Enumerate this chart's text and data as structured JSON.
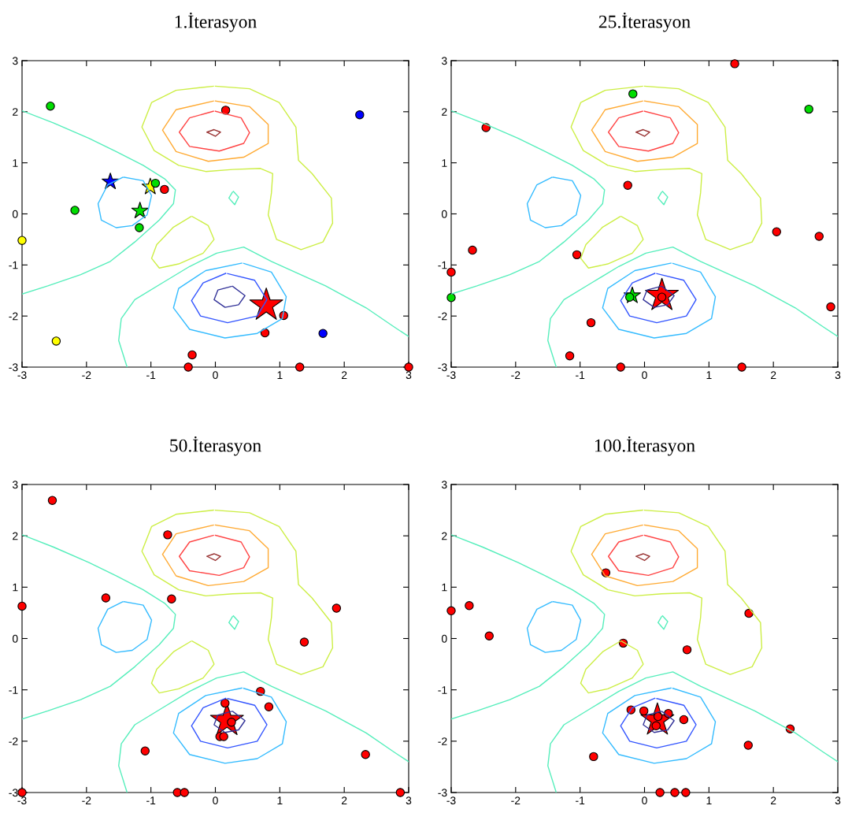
{
  "chart_data": [
    {
      "type": "scatter",
      "title": "1.İterasyon",
      "xlim": [
        -3,
        3
      ],
      "ylim": [
        -3,
        3
      ],
      "xticks": [
        -3,
        -2,
        -1,
        0,
        1,
        2,
        3
      ],
      "yticks": [
        -3,
        -2,
        -1,
        0,
        1,
        2,
        3
      ],
      "series": [
        {
          "type": "line",
          "color": "#55eebb",
          "x": [
            -3,
            -2.51,
            -1.96,
            -1.54,
            -1.12,
            -0.78,
            -0.62,
            -0.65,
            -0.87,
            -1.25,
            -1.63,
            -2.09,
            -2.6,
            -3
          ],
          "values": [
            2.02,
            1.78,
            1.48,
            1.22,
            0.95,
            0.68,
            0.47,
            0.2,
            -0.12,
            -0.55,
            -0.93,
            -1.19,
            -1.41,
            -1.57
          ]
        },
        {
          "type": "line",
          "color": "#55eebb",
          "x": [
            -1.37,
            -1.5,
            -1.46,
            -1.25,
            -0.82,
            -0.4,
            0.02,
            0.44,
            0.87,
            1.71,
            2.34,
            2.77,
            3
          ],
          "values": [
            -3,
            -2.48,
            -2.05,
            -1.68,
            -1.35,
            -1.03,
            -0.77,
            -0.65,
            -0.93,
            -1.41,
            -1.84,
            -2.21,
            -2.4
          ]
        },
        {
          "type": "line",
          "color": "#55eebb",
          "x": [
            0.28,
            0.36,
            0.3,
            0.21,
            0.265
          ],
          "values": [
            0.44,
            0.33,
            0.18,
            0.31,
            0.425
          ]
        },
        {
          "type": "line",
          "color": "#33bbff",
          "x": [
            -1.42,
            -1.12,
            -0.99,
            -1.06,
            -1.29,
            -1.54,
            -1.77,
            -1.82,
            -1.67,
            -1.44
          ],
          "values": [
            0.72,
            0.65,
            0.36,
            -0.02,
            -0.23,
            -0.27,
            -0.12,
            0.2,
            0.57,
            0.715
          ]
        },
        {
          "type": "line",
          "color": "#ccee44",
          "x": [
            -0.36,
            -0.11,
            -0.02,
            -0.19,
            -0.57,
            -0.87,
            -0.99,
            -0.91,
            -0.65,
            -0.38
          ],
          "values": [
            -0.05,
            -0.23,
            -0.5,
            -0.77,
            -0.98,
            -1.06,
            -0.87,
            -0.6,
            -0.26,
            -0.055
          ]
        },
        {
          "type": "line",
          "color": "#ccee44",
          "x": [
            0,
            0.53,
            0.99,
            1.25,
            1.29,
            1.5,
            1.8,
            1.82,
            1.67,
            1.33,
            0.95,
            0.82,
            0.87,
            0.89,
            0.7,
            0.27,
            -0.15,
            -0.57,
            -0.95,
            -1.14,
            -0.99,
            -0.61,
            -0.03
          ],
          "values": [
            2.5,
            2.45,
            2.18,
            1.7,
            1.05,
            0.79,
            0.31,
            -0.18,
            -0.55,
            -0.7,
            -0.5,
            -0.02,
            0.41,
            0.79,
            0.89,
            0.87,
            0.83,
            0.95,
            1.24,
            1.7,
            2.18,
            2.42,
            2.5
          ]
        },
        {
          "type": "line",
          "color": "#ffaa33",
          "x": [
            0,
            0.53,
            0.82,
            0.82,
            0.44,
            -0.11,
            -0.61,
            -0.82,
            -0.61,
            -0.03
          ],
          "values": [
            2.21,
            2.1,
            1.75,
            1.38,
            1.11,
            1.03,
            1.22,
            1.64,
            2.04,
            2.21
          ]
        },
        {
          "type": "line",
          "color": "#ff4444",
          "x": [
            0,
            0.4,
            0.53,
            0.44,
            0.06,
            -0.4,
            -0.56,
            -0.4,
            -0.03
          ],
          "values": [
            2.01,
            1.88,
            1.59,
            1.38,
            1.23,
            1.32,
            1.6,
            1.88,
            2.01
          ]
        },
        {
          "type": "line",
          "color": "#993333",
          "x": [
            -0.13,
            -0.02,
            0.08,
            0,
            -0.12
          ],
          "values": [
            1.6,
            1.65,
            1.6,
            1.52,
            1.595
          ]
        },
        {
          "type": "line",
          "color": "#33bbff",
          "x": [
            0.44,
            0.87,
            1.1,
            1.04,
            0.65,
            0.15,
            -0.4,
            -0.65,
            -0.57,
            -0.15,
            0.41
          ],
          "values": [
            -0.97,
            -1.14,
            -1.62,
            -2.05,
            -2.34,
            -2.43,
            -2.26,
            -1.84,
            -1.46,
            -1.11,
            -0.965
          ]
        },
        {
          "type": "line",
          "color": "#3355ff",
          "x": [
            0.19,
            0.61,
            0.8,
            0.65,
            0.19,
            -0.23,
            -0.37,
            -0.19,
            0.16
          ],
          "values": [
            -1.17,
            -1.3,
            -1.68,
            -2.0,
            -2.13,
            -2.0,
            -1.7,
            -1.35,
            -1.165
          ]
        },
        {
          "type": "line",
          "color": "#333399",
          "x": [
            0.27,
            0.46,
            0.36,
            0.15,
            -0.02,
            0.04,
            0.25
          ],
          "values": [
            -1.42,
            -1.6,
            -1.78,
            -1.83,
            -1.68,
            -1.49,
            -1.42
          ]
        },
        {
          "type": "scatter",
          "marker": "circle",
          "color": "#00dd00",
          "x": [
            -2.56,
            -2.18,
            -1.18,
            -0.93
          ],
          "values": [
            2.11,
            0.07,
            -0.27,
            0.6
          ]
        },
        {
          "type": "scatter",
          "marker": "circle",
          "color": "#ffff00",
          "x": [
            -3,
            -2.47
          ],
          "values": [
            -0.52,
            -2.49
          ]
        },
        {
          "type": "scatter",
          "marker": "circle",
          "color": "#0000ff",
          "x": [
            2.24,
            1.67
          ],
          "values": [
            1.94,
            -2.34
          ]
        },
        {
          "type": "scatter",
          "marker": "circle",
          "color": "#ff0000",
          "x": [
            0.16,
            -0.79,
            1.06,
            0.77,
            -0.36,
            -0.42,
            1.31,
            3
          ],
          "values": [
            2.03,
            0.48,
            -1.99,
            -2.33,
            -2.76,
            -3,
            -3,
            -3
          ]
        },
        {
          "type": "scatter",
          "marker": "star",
          "colors": [
            "#0000ff",
            "#ffff00",
            "#00dd00",
            "#ff0000"
          ],
          "x": [
            -1.63,
            -1.01,
            -1.17,
            0.79
          ],
          "values": [
            0.63,
            0.53,
            0.06,
            -1.79
          ],
          "sizes": [
            0.25,
            0.25,
            0.25,
            1
          ]
        }
      ]
    },
    {
      "type": "scatter",
      "title": "25.İterasyon",
      "xlim": [
        -3,
        3
      ],
      "ylim": [
        -3,
        3
      ],
      "xticks": [
        -3,
        -2,
        -1,
        0,
        1,
        2,
        3
      ],
      "yticks": [
        -3,
        -2,
        -1,
        0,
        1,
        2,
        3
      ],
      "series": [
        {
          "type": "line",
          "color": "#55eebb",
          "x": [
            -3,
            -2.51,
            -1.96,
            -1.54,
            -1.12,
            -0.78,
            -0.62,
            -0.65,
            -0.87,
            -1.25,
            -1.63,
            -2.09,
            -2.6,
            -3
          ],
          "values": [
            2.02,
            1.78,
            1.48,
            1.22,
            0.95,
            0.68,
            0.47,
            0.2,
            -0.12,
            -0.55,
            -0.93,
            -1.19,
            -1.41,
            -1.57
          ]
        },
        {
          "type": "line",
          "color": "#55eebb",
          "x": [
            -1.37,
            -1.5,
            -1.46,
            -1.25,
            -0.82,
            -0.4,
            0.02,
            0.44,
            0.87,
            1.71,
            2.34,
            2.77,
            3
          ],
          "values": [
            -3,
            -2.48,
            -2.05,
            -1.68,
            -1.35,
            -1.03,
            -0.77,
            -0.65,
            -0.93,
            -1.41,
            -1.84,
            -2.21,
            -2.4
          ]
        },
        {
          "type": "line",
          "color": "#55eebb",
          "x": [
            0.28,
            0.36,
            0.3,
            0.21,
            0.265
          ],
          "values": [
            0.44,
            0.33,
            0.18,
            0.31,
            0.425
          ]
        },
        {
          "type": "line",
          "color": "#33bbff",
          "x": [
            -1.42,
            -1.12,
            -0.99,
            -1.06,
            -1.29,
            -1.54,
            -1.77,
            -1.82,
            -1.67,
            -1.44
          ],
          "values": [
            0.72,
            0.65,
            0.36,
            -0.02,
            -0.23,
            -0.27,
            -0.12,
            0.2,
            0.57,
            0.715
          ]
        },
        {
          "type": "line",
          "color": "#ccee44",
          "x": [
            -0.36,
            -0.11,
            -0.02,
            -0.19,
            -0.57,
            -0.87,
            -0.99,
            -0.91,
            -0.65,
            -0.38
          ],
          "values": [
            -0.05,
            -0.23,
            -0.5,
            -0.77,
            -0.98,
            -1.06,
            -0.87,
            -0.6,
            -0.26,
            -0.055
          ]
        },
        {
          "type": "line",
          "color": "#ccee44",
          "x": [
            0,
            0.53,
            0.99,
            1.25,
            1.29,
            1.5,
            1.8,
            1.82,
            1.67,
            1.33,
            0.95,
            0.82,
            0.87,
            0.89,
            0.7,
            0.27,
            -0.15,
            -0.57,
            -0.95,
            -1.14,
            -0.99,
            -0.61,
            -0.03
          ],
          "values": [
            2.5,
            2.45,
            2.18,
            1.7,
            1.05,
            0.79,
            0.31,
            -0.18,
            -0.55,
            -0.7,
            -0.5,
            -0.02,
            0.41,
            0.79,
            0.89,
            0.87,
            0.83,
            0.95,
            1.24,
            1.7,
            2.18,
            2.42,
            2.5
          ]
        },
        {
          "type": "line",
          "color": "#ffaa33",
          "x": [
            0,
            0.53,
            0.82,
            0.82,
            0.44,
            -0.11,
            -0.61,
            -0.82,
            -0.61,
            -0.03
          ],
          "values": [
            2.21,
            2.1,
            1.75,
            1.38,
            1.11,
            1.03,
            1.22,
            1.64,
            2.04,
            2.21
          ]
        },
        {
          "type": "line",
          "color": "#ff4444",
          "x": [
            0,
            0.4,
            0.53,
            0.44,
            0.06,
            -0.4,
            -0.56,
            -0.4,
            -0.03
          ],
          "values": [
            2.01,
            1.88,
            1.59,
            1.38,
            1.23,
            1.32,
            1.6,
            1.88,
            2.01
          ]
        },
        {
          "type": "line",
          "color": "#993333",
          "x": [
            -0.13,
            -0.02,
            0.08,
            0,
            -0.12
          ],
          "values": [
            1.6,
            1.65,
            1.6,
            1.52,
            1.595
          ]
        },
        {
          "type": "line",
          "color": "#33bbff",
          "x": [
            0.44,
            0.87,
            1.1,
            1.04,
            0.65,
            0.15,
            -0.4,
            -0.65,
            -0.57,
            -0.15,
            0.41
          ],
          "values": [
            -0.97,
            -1.14,
            -1.62,
            -2.05,
            -2.34,
            -2.43,
            -2.26,
            -1.84,
            -1.46,
            -1.11,
            -0.965
          ]
        },
        {
          "type": "line",
          "color": "#3355ff",
          "x": [
            0.19,
            0.61,
            0.8,
            0.65,
            0.19,
            -0.23,
            -0.37,
            -0.19,
            0.16
          ],
          "values": [
            -1.17,
            -1.3,
            -1.68,
            -2.0,
            -2.13,
            -2.0,
            -1.7,
            -1.35,
            -1.165
          ]
        },
        {
          "type": "line",
          "color": "#333399",
          "x": [
            0.27,
            0.46,
            0.36,
            0.15,
            -0.02,
            0.04,
            0.25
          ],
          "values": [
            -1.42,
            -1.6,
            -1.78,
            -1.83,
            -1.68,
            -1.49,
            -1.42
          ]
        },
        {
          "type": "scatter",
          "marker": "circle",
          "color": "#00dd00",
          "x": [
            -0.18,
            2.55,
            -3,
            -0.23
          ],
          "values": [
            2.35,
            2.05,
            -1.64,
            -1.63
          ]
        },
        {
          "type": "scatter",
          "marker": "star",
          "colors": [
            "#00dd00"
          ],
          "x": [
            -0.19
          ],
          "values": [
            -1.6
          ],
          "sizes": [
            0.25
          ]
        },
        {
          "type": "scatter",
          "marker": "star",
          "colors": [
            "#ff0000"
          ],
          "x": [
            0.27
          ],
          "values": [
            -1.6
          ],
          "sizes": [
            1
          ]
        },
        {
          "type": "scatter",
          "marker": "circle",
          "color": "#ff0000",
          "x": [
            1.4,
            -2.46,
            -0.26,
            2.05,
            2.71,
            -2.67,
            -1.05,
            -3,
            2.89,
            -0.83,
            -1.16,
            -0.37,
            1.51,
            0.27
          ],
          "values": [
            2.94,
            1.69,
            0.56,
            -0.35,
            -0.44,
            -0.71,
            -0.8,
            -1.14,
            -1.82,
            -2.13,
            -2.78,
            -3,
            -3,
            -1.63
          ]
        }
      ]
    },
    {
      "type": "scatter",
      "title": "50.İterasyon",
      "xlim": [
        -3,
        3
      ],
      "ylim": [
        -3,
        3
      ],
      "xticks": [
        -3,
        -2,
        -1,
        0,
        1,
        2,
        3
      ],
      "yticks": [
        -3,
        -2,
        -1,
        0,
        1,
        2,
        3
      ],
      "series": [
        {
          "type": "line",
          "color": "#55eebb",
          "x": [
            -3,
            -2.51,
            -1.96,
            -1.54,
            -1.12,
            -0.78,
            -0.62,
            -0.65,
            -0.87,
            -1.25,
            -1.63,
            -2.09,
            -2.6,
            -3
          ],
          "values": [
            2.02,
            1.78,
            1.48,
            1.22,
            0.95,
            0.68,
            0.47,
            0.2,
            -0.12,
            -0.55,
            -0.93,
            -1.19,
            -1.41,
            -1.57
          ]
        },
        {
          "type": "line",
          "color": "#55eebb",
          "x": [
            -1.37,
            -1.5,
            -1.46,
            -1.25,
            -0.82,
            -0.4,
            0.02,
            0.44,
            0.87,
            1.71,
            2.34,
            2.77,
            3
          ],
          "values": [
            -3,
            -2.48,
            -2.05,
            -1.68,
            -1.35,
            -1.03,
            -0.77,
            -0.65,
            -0.93,
            -1.41,
            -1.84,
            -2.21,
            -2.4
          ]
        },
        {
          "type": "line",
          "color": "#55eebb",
          "x": [
            0.28,
            0.36,
            0.3,
            0.21,
            0.265
          ],
          "values": [
            0.44,
            0.33,
            0.18,
            0.31,
            0.425
          ]
        },
        {
          "type": "line",
          "color": "#33bbff",
          "x": [
            -1.42,
            -1.12,
            -0.99,
            -1.06,
            -1.29,
            -1.54,
            -1.77,
            -1.82,
            -1.67,
            -1.44
          ],
          "values": [
            0.72,
            0.65,
            0.36,
            -0.02,
            -0.23,
            -0.27,
            -0.12,
            0.2,
            0.57,
            0.715
          ]
        },
        {
          "type": "line",
          "color": "#ccee44",
          "x": [
            -0.36,
            -0.11,
            -0.02,
            -0.19,
            -0.57,
            -0.87,
            -0.99,
            -0.91,
            -0.65,
            -0.38
          ],
          "values": [
            -0.05,
            -0.23,
            -0.5,
            -0.77,
            -0.98,
            -1.06,
            -0.87,
            -0.6,
            -0.26,
            -0.055
          ]
        },
        {
          "type": "line",
          "color": "#ccee44",
          "x": [
            0,
            0.53,
            0.99,
            1.25,
            1.29,
            1.5,
            1.8,
            1.82,
            1.67,
            1.33,
            0.95,
            0.82,
            0.87,
            0.89,
            0.7,
            0.27,
            -0.15,
            -0.57,
            -0.95,
            -1.14,
            -0.99,
            -0.61,
            -0.03
          ],
          "values": [
            2.5,
            2.45,
            2.18,
            1.7,
            1.05,
            0.79,
            0.31,
            -0.18,
            -0.55,
            -0.7,
            -0.5,
            -0.02,
            0.41,
            0.79,
            0.89,
            0.87,
            0.83,
            0.95,
            1.24,
            1.7,
            2.18,
            2.42,
            2.5
          ]
        },
        {
          "type": "line",
          "color": "#ffaa33",
          "x": [
            0,
            0.53,
            0.82,
            0.82,
            0.44,
            -0.11,
            -0.61,
            -0.82,
            -0.61,
            -0.03
          ],
          "values": [
            2.21,
            2.1,
            1.75,
            1.38,
            1.11,
            1.03,
            1.22,
            1.64,
            2.04,
            2.21
          ]
        },
        {
          "type": "line",
          "color": "#ff4444",
          "x": [
            0,
            0.4,
            0.53,
            0.44,
            0.06,
            -0.4,
            -0.56,
            -0.4,
            -0.03
          ],
          "values": [
            2.01,
            1.88,
            1.59,
            1.38,
            1.23,
            1.32,
            1.6,
            1.88,
            2.01
          ]
        },
        {
          "type": "line",
          "color": "#993333",
          "x": [
            -0.13,
            -0.02,
            0.08,
            0,
            -0.12
          ],
          "values": [
            1.6,
            1.65,
            1.6,
            1.52,
            1.595
          ]
        },
        {
          "type": "line",
          "color": "#33bbff",
          "x": [
            0.44,
            0.87,
            1.1,
            1.04,
            0.65,
            0.15,
            -0.4,
            -0.65,
            -0.57,
            -0.15,
            0.41
          ],
          "values": [
            -0.97,
            -1.14,
            -1.62,
            -2.05,
            -2.34,
            -2.43,
            -2.26,
            -1.84,
            -1.46,
            -1.11,
            -0.965
          ]
        },
        {
          "type": "line",
          "color": "#3355ff",
          "x": [
            0.19,
            0.61,
            0.8,
            0.65,
            0.19,
            -0.23,
            -0.37,
            -0.19,
            0.16
          ],
          "values": [
            -1.17,
            -1.3,
            -1.68,
            -2.0,
            -2.13,
            -2.0,
            -1.7,
            -1.35,
            -1.165
          ]
        },
        {
          "type": "line",
          "color": "#333399",
          "x": [
            0.27,
            0.46,
            0.36,
            0.15,
            -0.02,
            0.04,
            0.25
          ],
          "values": [
            -1.42,
            -1.6,
            -1.78,
            -1.83,
            -1.68,
            -1.49,
            -1.42
          ]
        },
        {
          "type": "scatter",
          "marker": "star",
          "colors": [
            "#ff0000"
          ],
          "x": [
            0.18
          ],
          "values": [
            -1.6
          ],
          "sizes": [
            1
          ]
        },
        {
          "type": "scatter",
          "marker": "circle",
          "color": "#ff0000",
          "x": [
            -2.53,
            -0.74,
            -1.7,
            -0.68,
            -3,
            1.88,
            1.38,
            0.7,
            0.83,
            0.15,
            0.25,
            0.07,
            0.13,
            -1.09,
            2.33,
            -3,
            -0.59,
            -0.48,
            2.87
          ],
          "values": [
            2.69,
            2.02,
            0.79,
            0.77,
            0.63,
            0.59,
            -0.07,
            -1.03,
            -1.33,
            -1.26,
            -1.63,
            -1.91,
            -1.91,
            -2.19,
            -2.26,
            -3,
            -3,
            -3,
            -3
          ]
        }
      ]
    },
    {
      "type": "scatter",
      "title": "100.İterasyon",
      "xlim": [
        -3,
        3
      ],
      "ylim": [
        -3,
        3
      ],
      "xticks": [
        -3,
        -2,
        -1,
        0,
        1,
        2,
        3
      ],
      "yticks": [
        -3,
        -2,
        -1,
        0,
        1,
        2,
        3
      ],
      "series": [
        {
          "type": "line",
          "color": "#55eebb",
          "x": [
            -3,
            -2.51,
            -1.96,
            -1.54,
            -1.12,
            -0.78,
            -0.62,
            -0.65,
            -0.87,
            -1.25,
            -1.63,
            -2.09,
            -2.6,
            -3
          ],
          "values": [
            2.02,
            1.78,
            1.48,
            1.22,
            0.95,
            0.68,
            0.47,
            0.2,
            -0.12,
            -0.55,
            -0.93,
            -1.19,
            -1.41,
            -1.57
          ]
        },
        {
          "type": "line",
          "color": "#55eebb",
          "x": [
            -1.37,
            -1.5,
            -1.46,
            -1.25,
            -0.82,
            -0.4,
            0.02,
            0.44,
            0.87,
            1.71,
            2.34,
            2.77,
            3
          ],
          "values": [
            -3,
            -2.48,
            -2.05,
            -1.68,
            -1.35,
            -1.03,
            -0.77,
            -0.65,
            -0.93,
            -1.41,
            -1.84,
            -2.21,
            -2.4
          ]
        },
        {
          "type": "line",
          "color": "#55eebb",
          "x": [
            0.28,
            0.36,
            0.3,
            0.21,
            0.265
          ],
          "values": [
            0.44,
            0.33,
            0.18,
            0.31,
            0.425
          ]
        },
        {
          "type": "line",
          "color": "#33bbff",
          "x": [
            -1.42,
            -1.12,
            -0.99,
            -1.06,
            -1.29,
            -1.54,
            -1.77,
            -1.82,
            -1.67,
            -1.44
          ],
          "values": [
            0.72,
            0.65,
            0.36,
            -0.02,
            -0.23,
            -0.27,
            -0.12,
            0.2,
            0.57,
            0.715
          ]
        },
        {
          "type": "line",
          "color": "#ccee44",
          "x": [
            -0.36,
            -0.11,
            -0.02,
            -0.19,
            -0.57,
            -0.87,
            -0.99,
            -0.91,
            -0.65,
            -0.38
          ],
          "values": [
            -0.05,
            -0.23,
            -0.5,
            -0.77,
            -0.98,
            -1.06,
            -0.87,
            -0.6,
            -0.26,
            -0.055
          ]
        },
        {
          "type": "line",
          "color": "#ccee44",
          "x": [
            0,
            0.53,
            0.99,
            1.25,
            1.29,
            1.5,
            1.8,
            1.82,
            1.67,
            1.33,
            0.95,
            0.82,
            0.87,
            0.89,
            0.7,
            0.27,
            -0.15,
            -0.57,
            -0.95,
            -1.14,
            -0.99,
            -0.61,
            -0.03
          ],
          "values": [
            2.5,
            2.45,
            2.18,
            1.7,
            1.05,
            0.79,
            0.31,
            -0.18,
            -0.55,
            -0.7,
            -0.5,
            -0.02,
            0.41,
            0.79,
            0.89,
            0.87,
            0.83,
            0.95,
            1.24,
            1.7,
            2.18,
            2.42,
            2.5
          ]
        },
        {
          "type": "line",
          "color": "#ffaa33",
          "x": [
            0,
            0.53,
            0.82,
            0.82,
            0.44,
            -0.11,
            -0.61,
            -0.82,
            -0.61,
            -0.03
          ],
          "values": [
            2.21,
            2.1,
            1.75,
            1.38,
            1.11,
            1.03,
            1.22,
            1.64,
            2.04,
            2.21
          ]
        },
        {
          "type": "line",
          "color": "#ff4444",
          "x": [
            0,
            0.4,
            0.53,
            0.44,
            0.06,
            -0.4,
            -0.56,
            -0.4,
            -0.03
          ],
          "values": [
            2.01,
            1.88,
            1.59,
            1.38,
            1.23,
            1.32,
            1.6,
            1.88,
            2.01
          ]
        },
        {
          "type": "line",
          "color": "#993333",
          "x": [
            -0.13,
            -0.02,
            0.08,
            0,
            -0.12
          ],
          "values": [
            1.6,
            1.65,
            1.6,
            1.52,
            1.595
          ]
        },
        {
          "type": "line",
          "color": "#33bbff",
          "x": [
            0.44,
            0.87,
            1.1,
            1.04,
            0.65,
            0.15,
            -0.4,
            -0.65,
            -0.57,
            -0.15,
            0.41
          ],
          "values": [
            -0.97,
            -1.14,
            -1.62,
            -2.05,
            -2.34,
            -2.43,
            -2.26,
            -1.84,
            -1.46,
            -1.11,
            -0.965
          ]
        },
        {
          "type": "line",
          "color": "#3355ff",
          "x": [
            0.19,
            0.61,
            0.8,
            0.65,
            0.19,
            -0.23,
            -0.37,
            -0.19,
            0.16
          ],
          "values": [
            -1.17,
            -1.3,
            -1.68,
            -2.0,
            -2.13,
            -2.0,
            -1.7,
            -1.35,
            -1.165
          ]
        },
        {
          "type": "line",
          "color": "#333399",
          "x": [
            0.27,
            0.46,
            0.36,
            0.15,
            -0.02,
            0.04,
            0.25
          ],
          "values": [
            -1.42,
            -1.6,
            -1.78,
            -1.83,
            -1.68,
            -1.49,
            -1.42
          ]
        },
        {
          "type": "scatter",
          "marker": "star",
          "colors": [
            "#ff0000"
          ],
          "x": [
            0.2
          ],
          "values": [
            -1.59
          ],
          "sizes": [
            1
          ]
        },
        {
          "type": "scatter",
          "marker": "circle",
          "color": "#ff0000",
          "x": [
            -0.6,
            -3,
            -2.72,
            -2.41,
            -0.33,
            0.66,
            1.62,
            -0.21,
            -0.01,
            0.37,
            0.61,
            0.21,
            0.18,
            2.26,
            1.61,
            -0.79,
            0.24,
            0.47,
            0.64
          ],
          "values": [
            1.28,
            0.54,
            0.64,
            0.05,
            -0.09,
            -0.22,
            0.49,
            -1.39,
            -1.41,
            -1.46,
            -1.58,
            -1.52,
            -1.7,
            -1.76,
            -2.08,
            -2.3,
            -3,
            -3,
            -3
          ]
        }
      ]
    }
  ]
}
